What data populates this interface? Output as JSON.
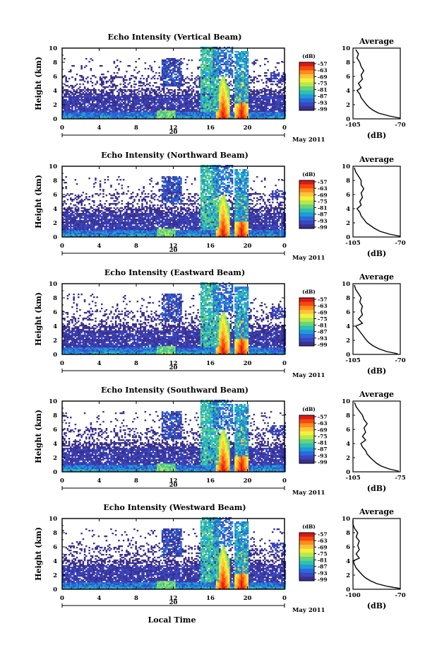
{
  "xlabel": "Local Time",
  "date_label": "May 2011",
  "avg_title": "Average",
  "avg_xlabel": "(dB)",
  "cbar_unit": "(dB)",
  "ylabel": "Height (km)",
  "colorbar_ticks": [
    "-57",
    "-63",
    "-69",
    "-75",
    "-81",
    "-87",
    "-93",
    "-99"
  ],
  "colorbar_colors": [
    "#d7191c",
    "#f9470b",
    "#fd8d1d",
    "#fdc33a",
    "#f5f03a",
    "#b6e84c",
    "#69d47a",
    "#2fc0b0",
    "#1c9cd9",
    "#2a6ad9",
    "#3a47c0",
    "#3b308f"
  ],
  "chart_data": [
    {
      "type": "heatmap",
      "title": "Echo Intensity (Vertical Beam)",
      "xlabel": "Local Time",
      "ylabel": "Height (km)",
      "xticks": [
        "0",
        "4",
        "8",
        "12",
        "16",
        "20",
        "0"
      ],
      "day_label": "20",
      "xlim": [
        0,
        24
      ],
      "ylim": [
        0,
        10
      ],
      "yticks": [
        "0",
        "2",
        "4",
        "6",
        "8",
        "10"
      ],
      "colorbar": {
        "unit": "(dB)",
        "ticks": [
          -57,
          -63,
          -69,
          -75,
          -81,
          -87,
          -93,
          -99
        ]
      },
      "average": {
        "title": "Average",
        "xlabel": "(dB)",
        "xticks": [
          "-105",
          "-70"
        ],
        "xlim": [
          -105,
          -70
        ],
        "profile": [
          [
            -70,
            0.1
          ],
          [
            -78,
            0.4
          ],
          [
            -86,
            0.8
          ],
          [
            -90,
            1.2
          ],
          [
            -93,
            1.6
          ],
          [
            -95,
            2.0
          ],
          [
            -97,
            2.5
          ],
          [
            -99,
            3.0
          ],
          [
            -100,
            3.5
          ],
          [
            -102,
            4.0
          ],
          [
            -99,
            4.4
          ],
          [
            -101,
            5.0
          ],
          [
            -98,
            5.6
          ],
          [
            -99,
            6.2
          ],
          [
            -97,
            6.8
          ],
          [
            -99,
            7.4
          ],
          [
            -100,
            8.0
          ],
          [
            -102,
            8.6
          ],
          [
            -101,
            9.2
          ],
          [
            -103,
            9.8
          ]
        ]
      }
    },
    {
      "type": "heatmap",
      "title": "Echo Intensity (Northward Beam)",
      "xlabel": "Local Time",
      "ylabel": "Height (km)",
      "xticks": [
        "0",
        "4",
        "8",
        "12",
        "16",
        "20",
        "0"
      ],
      "day_label": "20",
      "xlim": [
        0,
        24
      ],
      "ylim": [
        0,
        10
      ],
      "yticks": [
        "0",
        "2",
        "4",
        "6",
        "8",
        "10"
      ],
      "colorbar": {
        "unit": "(dB)",
        "ticks": [
          -57,
          -63,
          -69,
          -75,
          -81,
          -87,
          -93,
          -99
        ]
      },
      "average": {
        "title": "Average",
        "xlabel": "(dB)",
        "xticks": [
          "-105",
          "-70"
        ],
        "xlim": [
          -105,
          -70
        ],
        "profile": [
          [
            -70,
            0.1
          ],
          [
            -78,
            0.4
          ],
          [
            -85,
            0.8
          ],
          [
            -89,
            1.2
          ],
          [
            -92,
            1.6
          ],
          [
            -95,
            2.0
          ],
          [
            -97,
            2.5
          ],
          [
            -99,
            3.0
          ],
          [
            -100,
            3.5
          ],
          [
            -102,
            4.0
          ],
          [
            -99,
            4.5
          ],
          [
            -100,
            5.0
          ],
          [
            -98,
            5.6
          ],
          [
            -99,
            6.2
          ],
          [
            -97,
            6.8
          ],
          [
            -99,
            7.4
          ],
          [
            -99,
            8.0
          ],
          [
            -101,
            8.6
          ],
          [
            -103,
            9.2
          ],
          [
            -104,
            9.8
          ]
        ]
      }
    },
    {
      "type": "heatmap",
      "title": "Echo Intensity (Eastward Beam)",
      "xlabel": "Local Time",
      "ylabel": "Height (km)",
      "xticks": [
        "0",
        "4",
        "8",
        "12",
        "16",
        "20",
        "0"
      ],
      "day_label": "20",
      "xlim": [
        0,
        24
      ],
      "ylim": [
        0,
        10
      ],
      "yticks": [
        "0",
        "2",
        "4",
        "6",
        "8",
        "10"
      ],
      "colorbar": {
        "unit": "(dB)",
        "ticks": [
          -57,
          -63,
          -69,
          -75,
          -81,
          -87,
          -93,
          -99
        ]
      },
      "average": {
        "title": "Average",
        "xlabel": "(dB)",
        "xticks": [
          "-105",
          "-70"
        ],
        "xlim": [
          -105,
          -70
        ],
        "profile": [
          [
            -72,
            0.1
          ],
          [
            -80,
            0.4
          ],
          [
            -86,
            0.8
          ],
          [
            -90,
            1.2
          ],
          [
            -93,
            1.6
          ],
          [
            -95,
            2.0
          ],
          [
            -97,
            2.5
          ],
          [
            -99,
            3.0
          ],
          [
            -101,
            3.5
          ],
          [
            -103,
            4.0
          ],
          [
            -98,
            4.4
          ],
          [
            -101,
            5.0
          ],
          [
            -98,
            5.6
          ],
          [
            -99,
            6.2
          ],
          [
            -98,
            6.8
          ],
          [
            -100,
            7.4
          ],
          [
            -99,
            8.0
          ],
          [
            -101,
            8.6
          ],
          [
            -103,
            9.2
          ],
          [
            -104,
            9.8
          ]
        ]
      }
    },
    {
      "type": "heatmap",
      "title": "Echo Intensity (Southward Beam)",
      "xlabel": "Local Time",
      "ylabel": "Height (km)",
      "xticks": [
        "0",
        "4",
        "8",
        "12",
        "16",
        "20",
        "0"
      ],
      "day_label": "20",
      "xlim": [
        0,
        24
      ],
      "ylim": [
        0,
        10
      ],
      "yticks": [
        "0",
        "2",
        "4",
        "6",
        "8",
        "10"
      ],
      "colorbar": {
        "unit": "(dB)",
        "ticks": [
          -57,
          -63,
          -69,
          -75,
          -81,
          -87,
          -93,
          -99
        ]
      },
      "average": {
        "title": "Average",
        "xlabel": "(dB)",
        "xticks": [
          "-105",
          "-75"
        ],
        "xlim": [
          -105,
          -75
        ],
        "profile": [
          [
            -76,
            0.1
          ],
          [
            -82,
            0.4
          ],
          [
            -87,
            0.8
          ],
          [
            -90,
            1.2
          ],
          [
            -92,
            1.6
          ],
          [
            -94,
            2.0
          ],
          [
            -96,
            2.5
          ],
          [
            -97,
            3.0
          ],
          [
            -99,
            3.5
          ],
          [
            -100,
            4.0
          ],
          [
            -97,
            4.5
          ],
          [
            -99,
            5.0
          ],
          [
            -97,
            5.6
          ],
          [
            -98,
            6.2
          ],
          [
            -96,
            6.8
          ],
          [
            -98,
            7.4
          ],
          [
            -99,
            8.0
          ],
          [
            -101,
            8.6
          ],
          [
            -103,
            9.2
          ],
          [
            -104,
            9.8
          ]
        ]
      }
    },
    {
      "type": "heatmap",
      "title": "Echo Intensity (Westward Beam)",
      "xlabel": "Local Time",
      "ylabel": "Height (km)",
      "xticks": [
        "0",
        "4",
        "8",
        "12",
        "16",
        "20",
        "0"
      ],
      "day_label": "20",
      "xlim": [
        0,
        24
      ],
      "ylim": [
        0,
        10
      ],
      "yticks": [
        "0",
        "2",
        "4",
        "6",
        "8",
        "10"
      ],
      "colorbar": {
        "unit": "(dB)",
        "ticks": [
          -57,
          -63,
          -69,
          -75,
          -81,
          -87,
          -93,
          -99
        ]
      },
      "average": {
        "title": "Average",
        "xlabel": "(dB)",
        "xticks": [
          "-100",
          "-70"
        ],
        "xlim": [
          -100,
          -70
        ],
        "profile": [
          [
            -70,
            0.1
          ],
          [
            -78,
            0.4
          ],
          [
            -85,
            0.8
          ],
          [
            -89,
            1.2
          ],
          [
            -92,
            1.6
          ],
          [
            -94,
            2.0
          ],
          [
            -96,
            2.5
          ],
          [
            -98,
            3.0
          ],
          [
            -99,
            3.5
          ],
          [
            -100,
            4.0
          ],
          [
            -96,
            4.4
          ],
          [
            -98,
            5.0
          ],
          [
            -96,
            5.6
          ],
          [
            -97,
            6.2
          ],
          [
            -96,
            6.8
          ],
          [
            -98,
            7.4
          ],
          [
            -97,
            8.0
          ],
          [
            -99,
            8.6
          ],
          [
            -100,
            9.2
          ],
          [
            -100,
            9.8
          ]
        ]
      }
    }
  ]
}
